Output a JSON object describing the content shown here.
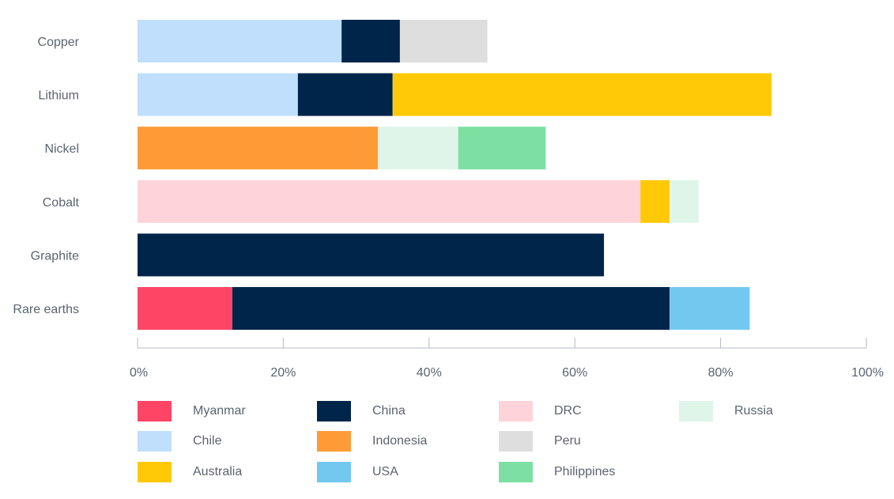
{
  "chart_data": {
    "type": "bar",
    "orientation": "horizontal",
    "stacked": true,
    "categories": [
      "Copper",
      "Lithium",
      "Nickel",
      "Cobalt",
      "Graphite",
      "Rare earths"
    ],
    "xlim": [
      0,
      100
    ],
    "x_ticks": [
      "0%",
      "20%",
      "40%",
      "60%",
      "80%",
      "100%"
    ],
    "grid": false,
    "legend_position": "bottom",
    "series": [
      {
        "name": "Myanmar",
        "color": "#ff4565",
        "values": [
          0,
          0,
          0,
          0,
          0,
          13
        ]
      },
      {
        "name": "Chile",
        "color": "#bfdffc",
        "values": [
          28,
          22,
          0,
          0,
          0,
          0
        ]
      },
      {
        "name": "Australia",
        "color": "#ffc907",
        "values": [
          0,
          52,
          0,
          4,
          0,
          0
        ]
      },
      {
        "name": "China",
        "color": "#00254a",
        "values": [
          8,
          13,
          0,
          0,
          64,
          60
        ]
      },
      {
        "name": "Indonesia",
        "color": "#ff9b37",
        "values": [
          0,
          0,
          33,
          0,
          0,
          0
        ]
      },
      {
        "name": "USA",
        "color": "#73c8f0",
        "values": [
          0,
          0,
          0,
          0,
          0,
          11
        ]
      },
      {
        "name": "DRC",
        "color": "#ffd3da",
        "values": [
          0,
          0,
          0,
          69,
          0,
          0
        ]
      },
      {
        "name": "Peru",
        "color": "#dedede",
        "values": [
          12,
          0,
          0,
          0,
          0,
          0
        ]
      },
      {
        "name": "Philippines",
        "color": "#7ddfa1",
        "values": [
          0,
          0,
          12,
          0,
          0,
          0
        ]
      },
      {
        "name": "Russia",
        "color": "#dff5e9",
        "values": [
          0,
          0,
          11,
          4,
          0,
          0
        ]
      }
    ],
    "stack_order": [
      [
        "Chile",
        "China",
        "Peru"
      ],
      [
        "Chile",
        "China",
        "Australia"
      ],
      [
        "Indonesia",
        "Russia",
        "Philippines"
      ],
      [
        "DRC",
        "Australia",
        "Russia"
      ],
      [
        "China"
      ],
      [
        "Myanmar",
        "China",
        "USA"
      ]
    ],
    "legend": [
      "Myanmar",
      "China",
      "DRC",
      "Russia",
      "Chile",
      "Indonesia",
      "Peru",
      "Australia",
      "USA",
      "Philippines"
    ]
  }
}
